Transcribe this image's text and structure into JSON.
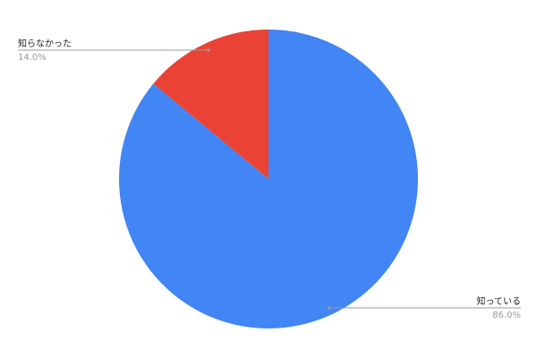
{
  "chart_data": {
    "type": "pie",
    "title": "",
    "slices": [
      {
        "label": "知っている",
        "value": 86.0,
        "percent_label": "86.0%",
        "color": "#4285f4"
      },
      {
        "label": "知らなかった",
        "value": 14.0,
        "percent_label": "14.0%",
        "color": "#ea4335"
      }
    ],
    "start_angle": "top",
    "direction": "clockwise",
    "legend": "none"
  }
}
